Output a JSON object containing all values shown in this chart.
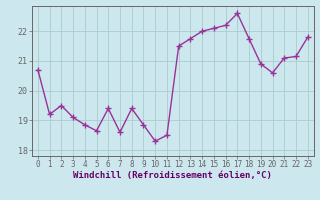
{
  "xlabel": "Windchill (Refroidissement éolien,°C)",
  "x": [
    0,
    1,
    2,
    3,
    4,
    5,
    6,
    7,
    8,
    9,
    10,
    11,
    12,
    13,
    14,
    15,
    16,
    17,
    18,
    19,
    20,
    21,
    22,
    23
  ],
  "y": [
    20.7,
    19.2,
    19.5,
    19.1,
    18.85,
    18.65,
    19.4,
    18.6,
    19.4,
    18.85,
    18.3,
    18.5,
    21.5,
    21.75,
    22.0,
    22.1,
    22.2,
    22.6,
    21.75,
    20.9,
    20.6,
    21.1,
    21.15,
    21.8
  ],
  "line_color": "#993399",
  "marker": "+",
  "markersize": 4,
  "linewidth": 1.0,
  "ylim": [
    17.8,
    22.85
  ],
  "yticks": [
    18,
    19,
    20,
    21,
    22
  ],
  "xticks": [
    0,
    1,
    2,
    3,
    4,
    5,
    6,
    7,
    8,
    9,
    10,
    11,
    12,
    13,
    14,
    15,
    16,
    17,
    18,
    19,
    20,
    21,
    22,
    23
  ],
  "bg_color": "#cce8ee",
  "grid_color": "#aacccc",
  "axis_color": "#666666",
  "label_color": "#660066",
  "tick_labelsize": 5.5,
  "xlabel_fontsize": 6.5
}
